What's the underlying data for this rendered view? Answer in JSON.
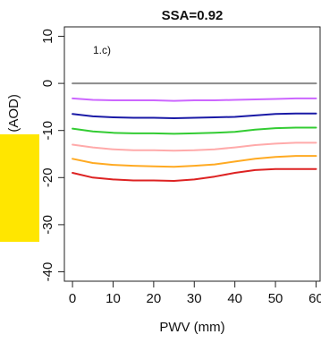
{
  "chart_data": {
    "type": "line",
    "title": "SSA=0.92",
    "panel_label": "1.c)",
    "xlabel": "PWV (mm)",
    "ylabel": "SW rel. diff., %, (AOD)",
    "xlim": [
      -2,
      61
    ],
    "ylim": [
      -42,
      12
    ],
    "x_ticks": [
      0,
      10,
      20,
      30,
      40,
      50,
      60
    ],
    "y_ticks": [
      10,
      0,
      -10,
      -20,
      -30,
      -40
    ],
    "grid": false,
    "legend": "none",
    "x": [
      0,
      5,
      10,
      15,
      20,
      25,
      30,
      35,
      40,
      45,
      50,
      55,
      60
    ],
    "series": [
      {
        "color": "#8c8c8c",
        "values": [
          0,
          0,
          0,
          0,
          0,
          0,
          0,
          0,
          0,
          0,
          0,
          0,
          0
        ]
      },
      {
        "color": "#cc66ff",
        "values": [
          -3.2,
          -3.5,
          -3.6,
          -3.6,
          -3.6,
          -3.7,
          -3.6,
          -3.6,
          -3.5,
          -3.4,
          -3.3,
          -3.2,
          -3.2
        ]
      },
      {
        "color": "#1a1aa6",
        "values": [
          -6.5,
          -7.0,
          -7.2,
          -7.3,
          -7.3,
          -7.4,
          -7.3,
          -7.2,
          -7.1,
          -6.8,
          -6.5,
          -6.4,
          -6.4
        ]
      },
      {
        "color": "#33cc33",
        "values": [
          -9.6,
          -10.2,
          -10.5,
          -10.6,
          -10.6,
          -10.7,
          -10.6,
          -10.5,
          -10.3,
          -9.8,
          -9.5,
          -9.4,
          -9.4
        ]
      },
      {
        "color": "#ffaaaa",
        "values": [
          -13.0,
          -13.6,
          -14.0,
          -14.2,
          -14.2,
          -14.3,
          -14.2,
          -14.0,
          -13.6,
          -13.1,
          -12.8,
          -12.6,
          -12.6
        ]
      },
      {
        "color": "#ffaa22",
        "values": [
          -16.0,
          -16.9,
          -17.3,
          -17.5,
          -17.6,
          -17.7,
          -17.5,
          -17.2,
          -16.6,
          -16.0,
          -15.6,
          -15.4,
          -15.4
        ]
      },
      {
        "color": "#dd2222",
        "values": [
          -19.0,
          -20.0,
          -20.4,
          -20.6,
          -20.6,
          -20.7,
          -20.4,
          -19.8,
          -19.0,
          -18.4,
          -18.2,
          -18.2,
          -18.2
        ]
      }
    ]
  }
}
